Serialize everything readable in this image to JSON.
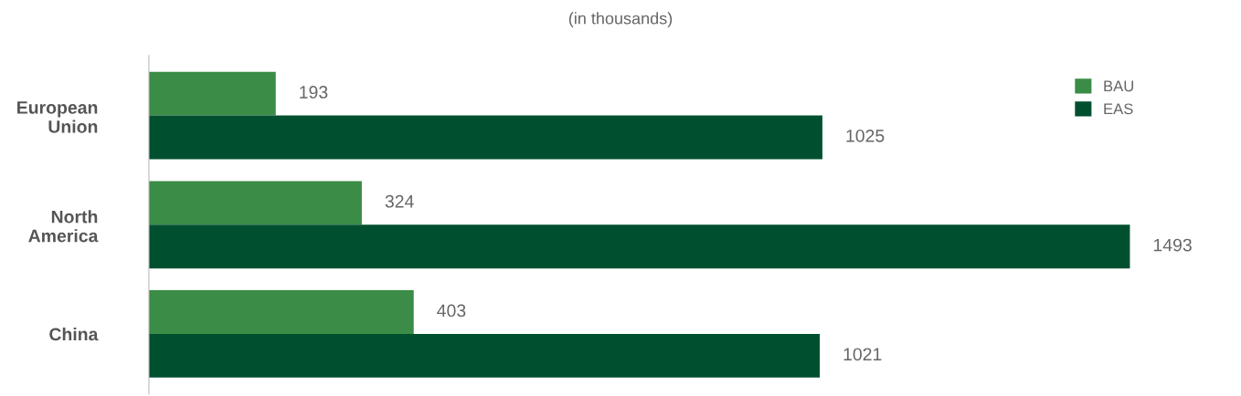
{
  "chart_data": {
    "type": "bar",
    "orientation": "horizontal",
    "title": "(in thousands)",
    "categories": [
      "European Union",
      "North America",
      "China"
    ],
    "series": [
      {
        "name": "BAU",
        "color": "#3a8c46",
        "values": [
          193,
          324,
          403
        ]
      },
      {
        "name": "EAS",
        "color": "#005030",
        "values": [
          1025,
          1493,
          1021
        ]
      }
    ],
    "data_labels": true,
    "legend": "top right",
    "grid": false,
    "tick_labels": "y"
  }
}
